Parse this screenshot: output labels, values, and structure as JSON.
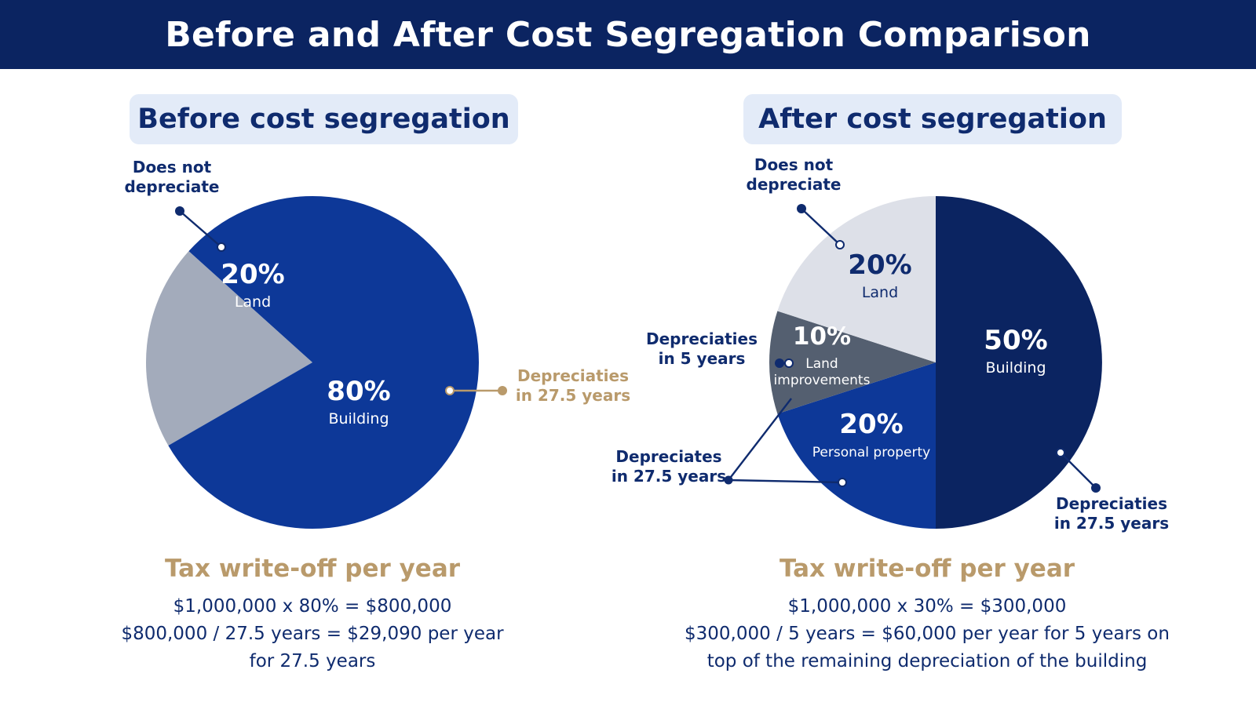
{
  "title": "Before and After Cost Segregation Comparison",
  "colors": {
    "header_bg": "#0b2461",
    "pill_bg": "#e3ebf8",
    "dark_navy": "#0f2b6e",
    "gold": "#b99a6b",
    "building_before": "#0d3898",
    "land_before": "#a3abbb",
    "building_after": "#0b2461",
    "personal_property": "#0d3898",
    "land_improvements": "#545f70",
    "land_after": "#dde0e8"
  },
  "before": {
    "heading": "Before cost segregation"
  },
  "after": {
    "heading": "After cost segregation"
  },
  "chart_data": [
    {
      "type": "pie",
      "title": "Before cost segregation",
      "slices": [
        {
          "label": "Land",
          "value": 20,
          "value_label": "20%",
          "color": "#a3abbb",
          "text_color": "#ffffff"
        },
        {
          "label": "Building",
          "value": 80,
          "value_label": "80%",
          "color": "#0d3898",
          "text_color": "#ffffff"
        }
      ],
      "annotations": [
        {
          "text": [
            "Does not",
            "depreciate"
          ],
          "color": "#0f2b6e"
        },
        {
          "text": [
            "Depreciaties",
            "in 27.5 years"
          ],
          "color": "#b99a6b"
        }
      ]
    },
    {
      "type": "pie",
      "title": "After cost segregation",
      "slices": [
        {
          "label": "Building",
          "value": 50,
          "value_label": "50%",
          "color": "#0b2461",
          "text_color": "#ffffff"
        },
        {
          "label": "Personal property",
          "value": 20,
          "value_label": "20%",
          "color": "#0d3898",
          "text_color": "#ffffff"
        },
        {
          "label": "Land improvements",
          "label_lines": [
            "Land",
            "improvements"
          ],
          "value": 10,
          "value_label": "10%",
          "color": "#545f70",
          "text_color": "#ffffff"
        },
        {
          "label": "Land",
          "value": 20,
          "value_label": "20%",
          "color": "#dde0e8",
          "text_color": "#0f2b6e"
        }
      ],
      "annotations": [
        {
          "text": [
            "Does not",
            "depreciate"
          ],
          "color": "#0f2b6e"
        },
        {
          "text": [
            "Depreciaties",
            "in 5 years"
          ],
          "color": "#0f2b6e"
        },
        {
          "text": [
            "Depreciates",
            "in 27.5 years"
          ],
          "color": "#0f2b6e"
        },
        {
          "text": [
            "Depreciaties",
            "in 27.5 years"
          ],
          "color": "#0f2b6e"
        }
      ]
    }
  ],
  "tax_left": {
    "title": "Tax write-off per year",
    "line1": "$1,000,000 x 80% = $800,000",
    "line2": "$800,000 / 27.5 years = $29,090 per year",
    "line3": "for 27.5 years"
  },
  "tax_right": {
    "title": "Tax write-off per year",
    "line1": "$1,000,000 x 30% = $300,000",
    "line2": "$300,000 / 5 years = $60,000 per year for 5 years on",
    "line3": "top of the remaining depreciation of the building"
  }
}
